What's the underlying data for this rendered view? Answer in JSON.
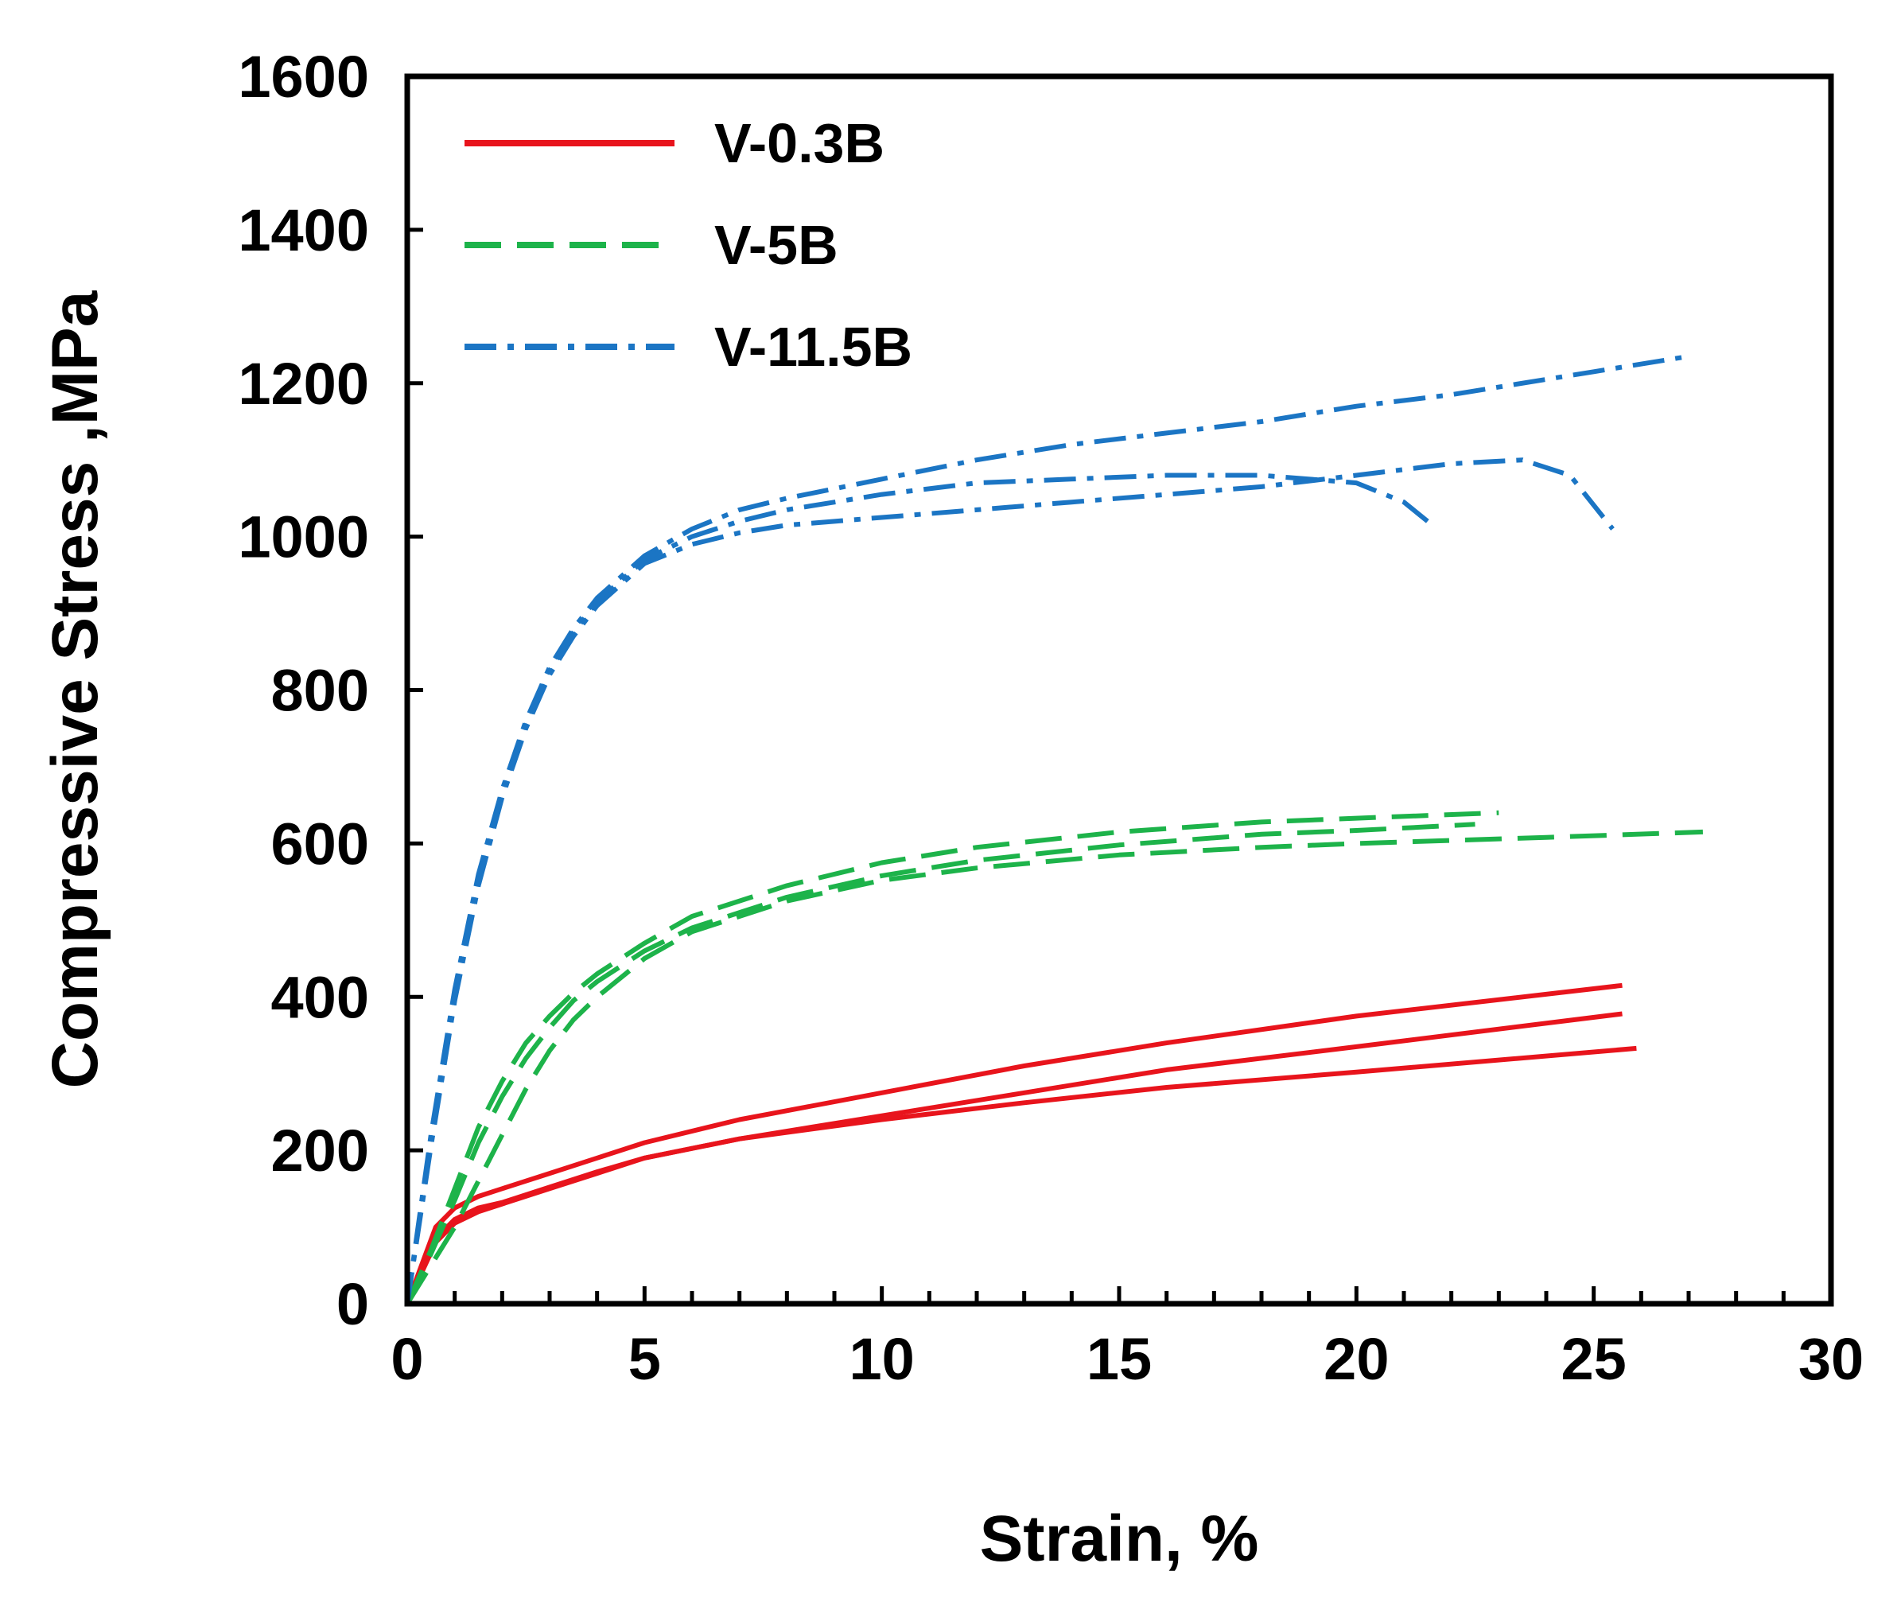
{
  "chart_data": {
    "type": "line",
    "title": "",
    "xlabel": "Strain, %",
    "ylabel": "Compressive Stress ,MPa",
    "xlim": [
      0,
      30
    ],
    "ylim": [
      0,
      1600
    ],
    "x_ticks": [
      0,
      5,
      10,
      15,
      20,
      25,
      30
    ],
    "y_ticks": [
      0,
      200,
      400,
      600,
      800,
      1000,
      1200,
      1400,
      1600
    ],
    "x_minor_step": 1,
    "grid": false,
    "legend_position": "top-left",
    "legend": [
      {
        "label": "V-0.3B",
        "color": "#e8141c",
        "style": "solid"
      },
      {
        "label": "V-5B",
        "color": "#1db34a",
        "style": "dashed"
      },
      {
        "label": "V-11.5B",
        "color": "#1b75c4",
        "style": "dash-dot"
      }
    ],
    "series": [
      {
        "name": "V-0.3B",
        "group": "V-0.3B",
        "color": "#e8141c",
        "style": "solid",
        "x": [
          0,
          0.3,
          0.6,
          1.0,
          1.5,
          2,
          3,
          4,
          5,
          7,
          10,
          13,
          16,
          20,
          25.6
        ],
        "y": [
          0,
          50,
          100,
          125,
          140,
          150,
          170,
          190,
          210,
          240,
          275,
          310,
          340,
          375,
          415
        ]
      },
      {
        "name": "V-0.3B",
        "group": "V-0.3B",
        "color": "#e8141c",
        "style": "solid",
        "x": [
          0,
          0.3,
          0.6,
          1.0,
          1.5,
          2,
          3,
          4,
          5,
          7,
          10,
          13,
          16,
          20,
          25.6
        ],
        "y": [
          0,
          40,
          80,
          105,
          120,
          130,
          150,
          170,
          190,
          215,
          245,
          275,
          305,
          335,
          378
        ]
      },
      {
        "name": "V-0.3B",
        "group": "V-0.3B",
        "color": "#e8141c",
        "style": "solid",
        "x": [
          0,
          0.3,
          0.6,
          1.0,
          1.5,
          2,
          3,
          4,
          5,
          7,
          10,
          13,
          16,
          20,
          25.9
        ],
        "y": [
          0,
          45,
          85,
          110,
          125,
          132,
          152,
          172,
          190,
          215,
          240,
          262,
          282,
          302,
          333
        ]
      },
      {
        "name": "V-5B",
        "group": "V-5B",
        "color": "#1db34a",
        "style": "dashed",
        "x": [
          0,
          0.5,
          1,
          1.5,
          2,
          2.5,
          3,
          3.5,
          4,
          5,
          6,
          8,
          10,
          12,
          15,
          18,
          20,
          23
        ],
        "y": [
          0,
          70,
          150,
          230,
          290,
          340,
          375,
          405,
          430,
          470,
          505,
          545,
          575,
          595,
          615,
          628,
          633,
          640
        ]
      },
      {
        "name": "V-5B",
        "group": "V-5B",
        "color": "#1db34a",
        "style": "dashed",
        "x": [
          0,
          0.5,
          1,
          1.5,
          2,
          2.5,
          3,
          3.5,
          4,
          5,
          6,
          8,
          10,
          12,
          15,
          18,
          20,
          22.5
        ],
        "y": [
          0,
          65,
          135,
          210,
          270,
          320,
          360,
          395,
          420,
          460,
          490,
          530,
          558,
          578,
          598,
          612,
          617,
          625
        ]
      },
      {
        "name": "V-5B",
        "group": "V-5B",
        "color": "#1db34a",
        "style": "dashed",
        "x": [
          0,
          0.5,
          1,
          1.5,
          2,
          2.5,
          3,
          3.5,
          4,
          5,
          6,
          8,
          10,
          12,
          15,
          18,
          20,
          24,
          27.3
        ],
        "y": [
          0,
          50,
          100,
          160,
          220,
          280,
          330,
          370,
          400,
          450,
          485,
          525,
          552,
          568,
          585,
          595,
          600,
          608,
          615
        ]
      },
      {
        "name": "V-11.5B",
        "group": "V-11.5B",
        "color": "#1b75c4",
        "style": "dash-dot",
        "x": [
          0,
          0.5,
          1,
          1.5,
          2,
          2.5,
          3,
          3.5,
          4,
          5,
          6,
          7,
          8,
          10,
          12,
          14,
          16,
          18,
          20,
          22,
          24,
          25,
          27
        ],
        "y": [
          0,
          220,
          410,
          560,
          670,
          760,
          830,
          880,
          920,
          975,
          1010,
          1035,
          1050,
          1075,
          1100,
          1120,
          1135,
          1150,
          1170,
          1185,
          1205,
          1215,
          1235
        ]
      },
      {
        "name": "V-11.5B",
        "group": "V-11.5B",
        "color": "#1b75c4",
        "style": "dash-dot",
        "x": [
          0,
          0.5,
          1,
          1.5,
          2,
          2.5,
          3,
          3.5,
          4,
          5,
          6,
          7,
          8,
          10,
          12,
          14,
          16,
          18,
          20,
          21,
          21.5
        ],
        "y": [
          0,
          210,
          400,
          550,
          665,
          755,
          825,
          875,
          915,
          970,
          1000,
          1020,
          1035,
          1055,
          1070,
          1075,
          1080,
          1080,
          1070,
          1045,
          1020
        ]
      },
      {
        "name": "V-11.5B",
        "group": "V-11.5B",
        "color": "#1b75c4",
        "style": "dash-dot",
        "x": [
          0,
          0.5,
          1,
          1.5,
          2,
          2.5,
          3,
          3.5,
          4,
          5,
          6,
          7,
          8,
          10,
          12,
          14,
          16,
          18,
          20,
          22,
          23.5,
          24.5,
          25.4
        ],
        "y": [
          0,
          205,
          395,
          545,
          660,
          750,
          820,
          870,
          910,
          965,
          990,
          1005,
          1015,
          1025,
          1035,
          1045,
          1055,
          1065,
          1080,
          1095,
          1100,
          1080,
          1010
        ]
      }
    ]
  }
}
